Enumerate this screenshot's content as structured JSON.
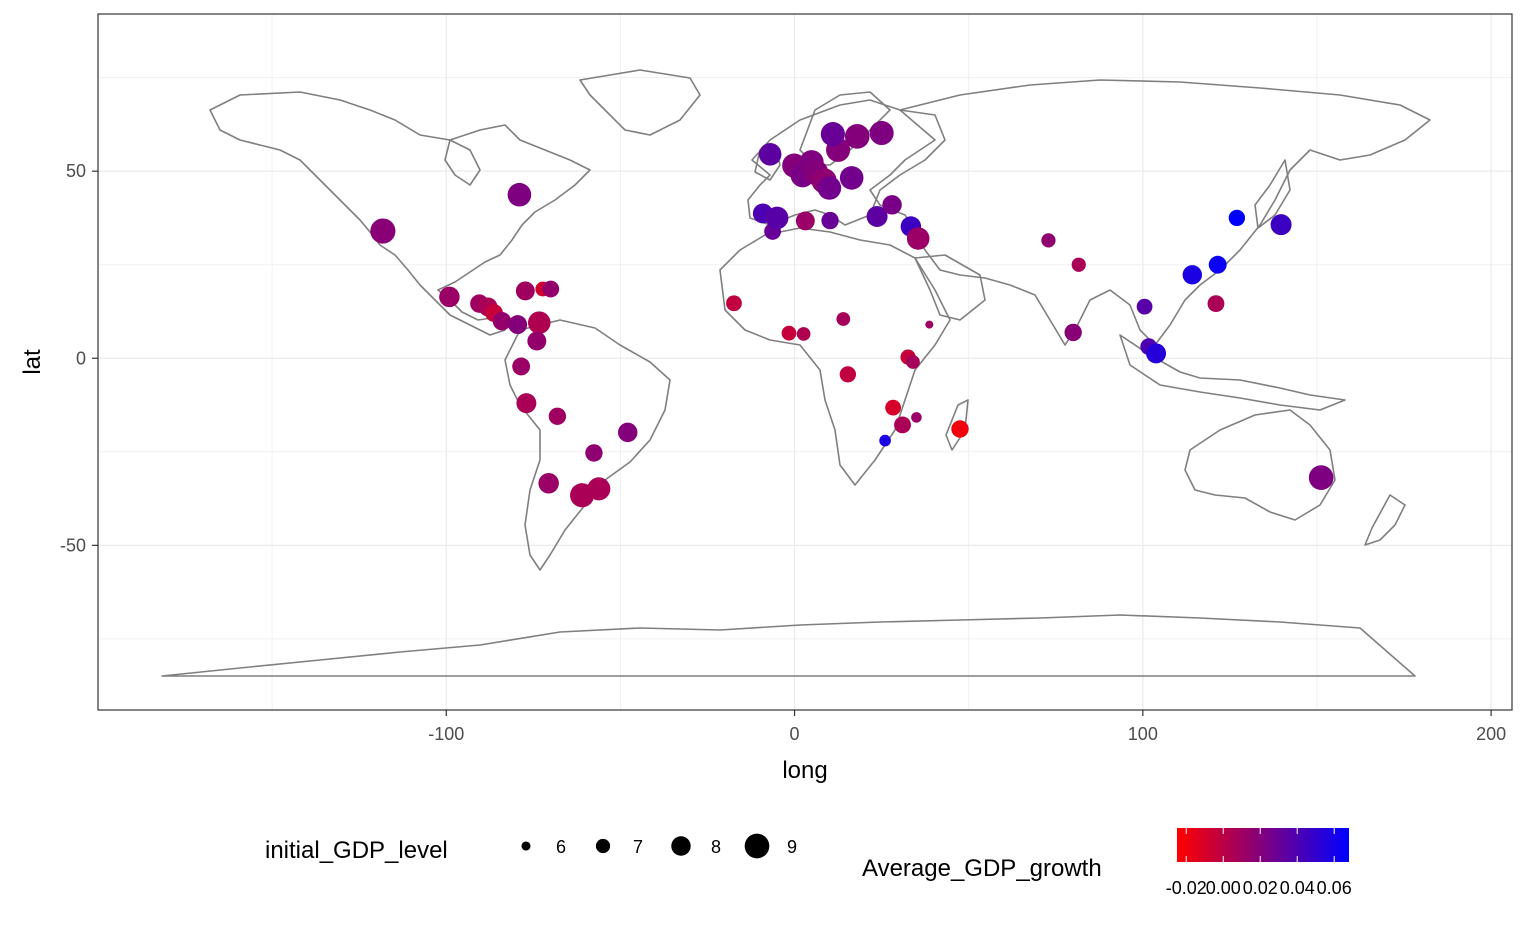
{
  "chart_data": {
    "type": "scatter",
    "title": "",
    "xlabel": "long",
    "ylabel": "lat",
    "xlim": [
      -200,
      206
    ],
    "ylim": [
      -94,
      92
    ],
    "xticks": [
      -100,
      0,
      100,
      200
    ],
    "yticks": [
      -50,
      0,
      50
    ],
    "xtick_labels": [
      "-100",
      "0",
      "100",
      "200"
    ],
    "ytick_labels": [
      "-50",
      "0",
      "50"
    ],
    "grid": true,
    "background_layer": "world country outlines",
    "size_legend": {
      "title": "initial_GDP_level",
      "values": [
        6,
        7,
        8,
        9
      ],
      "labels": [
        "6",
        "7",
        "8",
        "9"
      ]
    },
    "color_legend": {
      "title": "Average_GDP_growth",
      "low_color": "#ff0000",
      "high_color": "#0000ff",
      "range": [
        -0.025,
        0.068
      ],
      "breaks": [
        -0.02,
        0.0,
        0.02,
        0.04,
        0.06
      ],
      "labels": [
        "-0.02",
        "0.00",
        "0.02",
        "0.04",
        "0.06"
      ]
    },
    "points": [
      {
        "long": -118.2,
        "lat": 34.0,
        "gdp": 9.1,
        "growth": 0.018
      },
      {
        "long": -79.0,
        "lat": 43.7,
        "gdp": 8.8,
        "growth": 0.022
      },
      {
        "long": -99.1,
        "lat": 16.4,
        "gdp": 8.2,
        "growth": 0.012
      },
      {
        "long": -90.5,
        "lat": 14.6,
        "gdp": 7.8,
        "growth": 0.01
      },
      {
        "long": -88.0,
        "lat": 13.7,
        "gdp": 7.9,
        "growth": 0.006
      },
      {
        "long": -86.3,
        "lat": 12.1,
        "gdp": 7.7,
        "growth": -0.004
      },
      {
        "long": -84.0,
        "lat": 9.9,
        "gdp": 7.8,
        "growth": 0.014
      },
      {
        "long": -79.5,
        "lat": 9.0,
        "gdp": 7.9,
        "growth": 0.02
      },
      {
        "long": -77.3,
        "lat": 18.0,
        "gdp": 7.9,
        "growth": 0.01
      },
      {
        "long": -72.3,
        "lat": 18.5,
        "gdp": 7.1,
        "growth": -0.008
      },
      {
        "long": -70.0,
        "lat": 18.5,
        "gdp": 7.5,
        "growth": 0.014
      },
      {
        "long": -73.3,
        "lat": 9.5,
        "gdp": 8.6,
        "growth": 0.004
      },
      {
        "long": -74.0,
        "lat": 4.6,
        "gdp": 7.9,
        "growth": 0.014
      },
      {
        "long": -78.5,
        "lat": -2.2,
        "gdp": 7.7,
        "growth": 0.012
      },
      {
        "long": -77.0,
        "lat": -12.0,
        "gdp": 8.1,
        "growth": 0.006
      },
      {
        "long": -68.1,
        "lat": -15.5,
        "gdp": 7.6,
        "growth": 0.01
      },
      {
        "long": -57.6,
        "lat": -25.3,
        "gdp": 7.6,
        "growth": 0.016
      },
      {
        "long": -47.9,
        "lat": -19.8,
        "gdp": 8.0,
        "growth": 0.02
      },
      {
        "long": -70.6,
        "lat": -33.4,
        "gdp": 8.2,
        "growth": 0.012
      },
      {
        "long": -61.0,
        "lat": -36.6,
        "gdp": 8.9,
        "growth": 0.006
      },
      {
        "long": -56.2,
        "lat": -34.9,
        "gdp": 8.7,
        "growth": 0.006
      },
      {
        "long": -17.4,
        "lat": 14.7,
        "gdp": 7.3,
        "growth": -0.002
      },
      {
        "long": -1.6,
        "lat": 6.7,
        "gdp": 7.1,
        "growth": -0.004
      },
      {
        "long": 2.6,
        "lat": 6.5,
        "gdp": 6.9,
        "growth": 0.004
      },
      {
        "long": 14.0,
        "lat": 10.5,
        "gdp": 6.9,
        "growth": 0.008
      },
      {
        "long": 15.3,
        "lat": -4.3,
        "gdp": 7.4,
        "growth": -0.002
      },
      {
        "long": 32.6,
        "lat": 0.3,
        "gdp": 7.2,
        "growth": -0.004
      },
      {
        "long": 34.0,
        "lat": -1.0,
        "gdp": 6.9,
        "growth": 0.008
      },
      {
        "long": 38.7,
        "lat": 9.0,
        "gdp": 5.8,
        "growth": 0.01
      },
      {
        "long": 28.3,
        "lat": -13.2,
        "gdp": 7.3,
        "growth": -0.01
      },
      {
        "long": 31.0,
        "lat": -17.8,
        "gdp": 7.5,
        "growth": 0.006
      },
      {
        "long": 35.0,
        "lat": -15.8,
        "gdp": 6.3,
        "growth": 0.012
      },
      {
        "long": 26.0,
        "lat": -22.0,
        "gdp": 6.5,
        "growth": 0.058
      },
      {
        "long": 47.5,
        "lat": -18.9,
        "gdp": 7.6,
        "growth": -0.02
      },
      {
        "long": -6.3,
        "lat": 33.9,
        "gdp": 7.5,
        "growth": 0.03
      },
      {
        "long": 3.1,
        "lat": 36.7,
        "gdp": 7.9,
        "growth": 0.012
      },
      {
        "long": 10.2,
        "lat": 36.8,
        "gdp": 7.6,
        "growth": 0.03
      },
      {
        "long": -9.1,
        "lat": 38.7,
        "gdp": 8.1,
        "growth": 0.04
      },
      {
        "long": -5.0,
        "lat": 37.5,
        "gdp": 8.6,
        "growth": 0.036
      },
      {
        "long": -7.0,
        "lat": 54.5,
        "gdp": 8.6,
        "growth": 0.034
      },
      {
        "long": -0.1,
        "lat": 51.5,
        "gdp": 8.9,
        "growth": 0.02
      },
      {
        "long": 2.3,
        "lat": 48.9,
        "gdp": 8.9,
        "growth": 0.024
      },
      {
        "long": 4.4,
        "lat": 50.8,
        "gdp": 8.9,
        "growth": 0.024
      },
      {
        "long": 4.9,
        "lat": 52.4,
        "gdp": 8.9,
        "growth": 0.022
      },
      {
        "long": 6.1,
        "lat": 49.6,
        "gdp": 9.1,
        "growth": 0.02
      },
      {
        "long": 8.5,
        "lat": 47.4,
        "gdp": 9.1,
        "growth": 0.016
      },
      {
        "long": 10.0,
        "lat": 45.5,
        "gdp": 8.8,
        "growth": 0.026
      },
      {
        "long": 12.5,
        "lat": 55.7,
        "gdp": 8.9,
        "growth": 0.02
      },
      {
        "long": 11.0,
        "lat": 59.9,
        "gdp": 8.9,
        "growth": 0.03
      },
      {
        "long": 18.0,
        "lat": 59.3,
        "gdp": 9.0,
        "growth": 0.02
      },
      {
        "long": 25.0,
        "lat": 60.2,
        "gdp": 8.9,
        "growth": 0.022
      },
      {
        "long": 16.4,
        "lat": 48.2,
        "gdp": 8.8,
        "growth": 0.026
      },
      {
        "long": 23.7,
        "lat": 37.9,
        "gdp": 8.3,
        "growth": 0.034
      },
      {
        "long": 28.0,
        "lat": 41.0,
        "gdp": 8.0,
        "growth": 0.024
      },
      {
        "long": 33.4,
        "lat": 35.2,
        "gdp": 8.2,
        "growth": 0.046
      },
      {
        "long": 35.5,
        "lat": 32.0,
        "gdp": 8.6,
        "growth": 0.012
      },
      {
        "long": 72.9,
        "lat": 31.5,
        "gdp": 7.0,
        "growth": 0.016
      },
      {
        "long": 81.6,
        "lat": 25.0,
        "gdp": 7.0,
        "growth": 0.006
      },
      {
        "long": 80.0,
        "lat": 6.9,
        "gdp": 7.6,
        "growth": 0.018
      },
      {
        "long": 100.5,
        "lat": 13.8,
        "gdp": 7.3,
        "growth": 0.036
      },
      {
        "long": 101.7,
        "lat": 3.1,
        "gdp": 7.5,
        "growth": 0.04
      },
      {
        "long": 103.8,
        "lat": 1.3,
        "gdp": 8.1,
        "growth": 0.054
      },
      {
        "long": 114.2,
        "lat": 22.3,
        "gdp": 8.0,
        "growth": 0.058
      },
      {
        "long": 121.5,
        "lat": 25.0,
        "gdp": 7.7,
        "growth": 0.064
      },
      {
        "long": 121.0,
        "lat": 14.6,
        "gdp": 7.5,
        "growth": 0.006
      },
      {
        "long": 127.0,
        "lat": 37.5,
        "gdp": 7.4,
        "growth": 0.068
      },
      {
        "long": 139.7,
        "lat": 35.7,
        "gdp": 8.3,
        "growth": 0.046
      },
      {
        "long": 151.2,
        "lat": -31.9,
        "gdp": 9.0,
        "growth": 0.022
      }
    ]
  }
}
